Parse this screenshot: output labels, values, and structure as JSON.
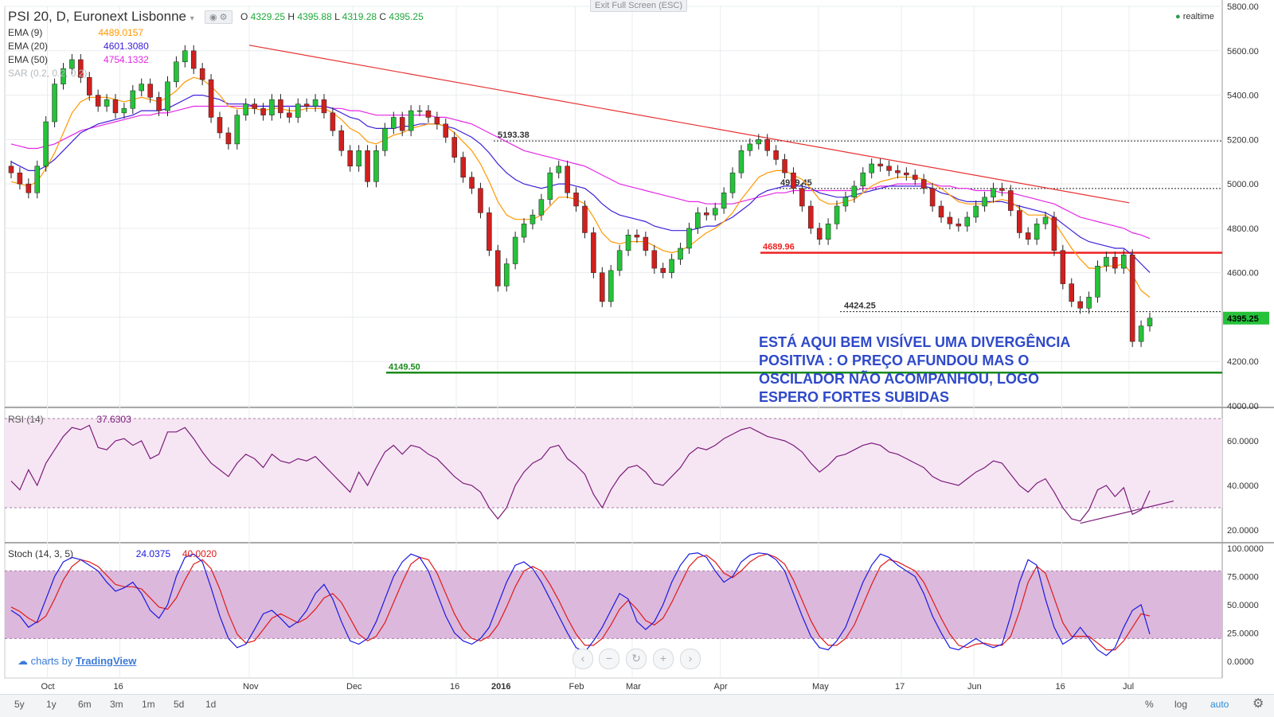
{
  "header": {
    "title": "PSI 20, D, Euronext Lisbonne",
    "ohlc": [
      {
        "k": "O",
        "v": "4329.25"
      },
      {
        "k": "H",
        "v": "4395.88"
      },
      {
        "k": "L",
        "v": "4319.28"
      },
      {
        "k": "C",
        "v": "4395.25"
      }
    ],
    "exit_fullscreen": "Exit Full Screen (ESC)",
    "realtime": "realtime"
  },
  "indicators": [
    {
      "name": "EMA (9)",
      "value": "4489.0157",
      "color": "#ff9800"
    },
    {
      "name": "EMA (20)",
      "value": "4601.3080",
      "color": "#3b20d6"
    },
    {
      "name": "EMA (50)",
      "value": "4754.1332",
      "color": "#e526e5"
    },
    {
      "name": "SAR (0.2, 0.2, 0.2)",
      "value": "",
      "color": "#999999"
    }
  ],
  "colors": {
    "up": "#26c23a",
    "down": "#d0201e",
    "grid": "#e9ecef",
    "trend": "#e83030",
    "support": "#1a8c1a",
    "resistance": "#ee2222",
    "rsi": "#7b1b7b",
    "rsi_band": "#f6e6f3",
    "stoch_band": "#dcb8dc",
    "stoch_k": "#1a1ae0",
    "stoch_d": "#e01a1a",
    "annotation": "#2f49c9"
  },
  "chart_data": [
    {
      "type": "candlestick",
      "title": "PSI 20, D, Euronext Lisbonne",
      "y_ticks": [
        "5800.00",
        "5600.00",
        "5400.00",
        "5200.00",
        "5000.00",
        "4800.00",
        "4600.00",
        "4400.00",
        "4200.00",
        "4000.00"
      ],
      "ylim": [
        4000,
        5800
      ],
      "x_ticks": [
        "Oct",
        "16",
        "Nov",
        "Dec",
        "16",
        "2016",
        "Feb",
        "Mar",
        "Apr",
        "May",
        "17",
        "Jun",
        "16",
        "Jul"
      ],
      "last_price": "4395.25",
      "levels": [
        {
          "label": "5193.38",
          "value": 5193.38,
          "style": "dotted"
        },
        {
          "label": "4979.45",
          "value": 4979.45,
          "style": "dotted"
        },
        {
          "label": "4689.96",
          "value": 4689.96,
          "style": "solid-red"
        },
        {
          "label": "4424.25",
          "value": 4424.25,
          "style": "dotted"
        },
        {
          "label": "4149.50",
          "value": 4149.5,
          "style": "solid-green"
        }
      ],
      "trendline": {
        "from": [
          "Nov",
          5625
        ],
        "to": [
          "Jul",
          4915
        ]
      },
      "annotation": [
        "ESTÁ AQUI BEM VISÍVEL UMA DIVERGÊNCIA",
        "POSITIVA : O PREÇO AFUNDOU MAS O",
        "OSCILADOR NÃO ACOMPANHOU, LOGO",
        "ESPERO FORTES SUBIDAS"
      ],
      "closes": [
        5050,
        5000,
        4960,
        5080,
        5280,
        5450,
        5520,
        5560,
        5480,
        5400,
        5350,
        5380,
        5320,
        5340,
        5420,
        5450,
        5390,
        5330,
        5460,
        5550,
        5600,
        5520,
        5470,
        5300,
        5230,
        5180,
        5310,
        5360,
        5340,
        5310,
        5380,
        5320,
        5300,
        5360,
        5350,
        5380,
        5320,
        5240,
        5150,
        5080,
        5150,
        5010,
        5150,
        5250,
        5300,
        5240,
        5330,
        5330,
        5300,
        5270,
        5210,
        5120,
        5030,
        4980,
        4870,
        4700,
        4540,
        4640,
        4760,
        4820,
        4860,
        4930,
        5050,
        5080,
        4960,
        4900,
        4780,
        4600,
        4470,
        4610,
        4700,
        4770,
        4760,
        4700,
        4620,
        4600,
        4660,
        4710,
        4800,
        4870,
        4860,
        4890,
        4960,
        5050,
        5150,
        5180,
        5200,
        5150,
        5110,
        5050,
        4980,
        4900,
        4800,
        4750,
        4820,
        4900,
        4940,
        4990,
        5050,
        5090,
        5080,
        5060,
        5050,
        5040,
        5020,
        4980,
        4900,
        4850,
        4820,
        4810,
        4850,
        4900,
        4940,
        4980,
        4970,
        4880,
        4780,
        4750,
        4820,
        4850,
        4700,
        4550,
        4470,
        4440,
        4490,
        4630,
        4670,
        4620,
        4680,
        4290,
        4360,
        4395
      ],
      "ema9": [
        5010,
        5000,
        4990,
        5010,
        5070,
        5140,
        5230,
        5320,
        5370,
        5390,
        5390,
        5390,
        5380,
        5370,
        5380,
        5390,
        5380,
        5370,
        5390,
        5420,
        5460,
        5480,
        5470,
        5440,
        5400,
        5350,
        5340,
        5340,
        5340,
        5330,
        5340,
        5340,
        5330,
        5330,
        5340,
        5340,
        5340,
        5320,
        5290,
        5250,
        5230,
        5190,
        5180,
        5200,
        5220,
        5230,
        5250,
        5260,
        5270,
        5270,
        5260,
        5230,
        5190,
        5150,
        5090,
        5010,
        4920,
        4860,
        4840,
        4840,
        4840,
        4860,
        4900,
        4940,
        4940,
        4930,
        4910,
        4850,
        4780,
        4740,
        4730,
        4740,
        4740,
        4740,
        4720,
        4700,
        4690,
        4700,
        4720,
        4750,
        4780,
        4800,
        4830,
        4870,
        4930,
        4980,
        5030,
        5050,
        5060,
        5060,
        5040,
        5020,
        4980,
        4930,
        4910,
        4910,
        4920,
        4930,
        4960,
        4990,
        5010,
        5020,
        5030,
        5030,
        5030,
        5020,
        5000,
        4980,
        4950,
        4920,
        4910,
        4910,
        4910,
        4920,
        4930,
        4920,
        4890,
        4860,
        4860,
        4860,
        4830,
        4770,
        4710,
        4660,
        4620,
        4620,
        4630,
        4630,
        4640,
        4590,
        4520,
        4489
      ],
      "ema20": [
        5100,
        5080,
        5060,
        5060,
        5080,
        5110,
        5150,
        5190,
        5230,
        5250,
        5270,
        5280,
        5290,
        5300,
        5310,
        5330,
        5330,
        5330,
        5340,
        5360,
        5380,
        5400,
        5400,
        5390,
        5380,
        5360,
        5360,
        5360,
        5350,
        5350,
        5350,
        5350,
        5350,
        5350,
        5350,
        5350,
        5350,
        5340,
        5320,
        5300,
        5290,
        5260,
        5250,
        5250,
        5250,
        5260,
        5260,
        5270,
        5270,
        5270,
        5260,
        5250,
        5230,
        5210,
        5180,
        5140,
        5090,
        5050,
        5020,
        5000,
        4990,
        4980,
        4990,
        5000,
        5000,
        4990,
        4980,
        4950,
        4910,
        4880,
        4860,
        4850,
        4840,
        4830,
        4810,
        4800,
        4790,
        4790,
        4790,
        4800,
        4810,
        4810,
        4830,
        4850,
        4880,
        4910,
        4950,
        4970,
        4980,
        4990,
        4990,
        4990,
        4980,
        4960,
        4950,
        4940,
        4940,
        4950,
        4960,
        4970,
        4980,
        4990,
        4990,
        4990,
        4990,
        4990,
        4980,
        4960,
        4950,
        4930,
        4920,
        4920,
        4920,
        4920,
        4920,
        4910,
        4900,
        4890,
        4880,
        4870,
        4850,
        4820,
        4790,
        4760,
        4740,
        4730,
        4720,
        4710,
        4710,
        4680,
        4640,
        4601
      ],
      "ema50": [
        5180,
        5170,
        5160,
        5160,
        5170,
        5180,
        5200,
        5220,
        5240,
        5250,
        5260,
        5270,
        5280,
        5290,
        5300,
        5310,
        5310,
        5320,
        5320,
        5330,
        5340,
        5350,
        5350,
        5350,
        5350,
        5350,
        5350,
        5350,
        5350,
        5350,
        5350,
        5350,
        5350,
        5350,
        5350,
        5350,
        5350,
        5340,
        5340,
        5330,
        5330,
        5320,
        5310,
        5310,
        5310,
        5310,
        5310,
        5310,
        5310,
        5300,
        5300,
        5290,
        5280,
        5270,
        5250,
        5230,
        5210,
        5190,
        5170,
        5150,
        5140,
        5130,
        5120,
        5110,
        5100,
        5090,
        5080,
        5060,
        5040,
        5020,
        5000,
        4990,
        4980,
        4970,
        4960,
        4950,
        4940,
        4930,
        4920,
        4920,
        4910,
        4910,
        4910,
        4910,
        4920,
        4930,
        4940,
        4950,
        4960,
        4960,
        4970,
        4970,
        4970,
        4970,
        4970,
        4970,
        4970,
        4970,
        4980,
        4980,
        4990,
        4990,
        5000,
        5000,
        5000,
        5000,
        5000,
        4990,
        4990,
        4980,
        4980,
        4970,
        4970,
        4970,
        4960,
        4960,
        4950,
        4940,
        4930,
        4920,
        4910,
        4890,
        4870,
        4850,
        4840,
        4830,
        4820,
        4810,
        4800,
        4780,
        4770,
        4754
      ]
    },
    {
      "type": "line",
      "title": "RSI (14)",
      "value_label": "37.6303",
      "y_ticks": [
        "60.0000",
        "40.0000",
        "20.0000"
      ],
      "ylim": [
        15,
        75
      ],
      "bands": [
        30,
        70
      ],
      "values": [
        42,
        38,
        47,
        40,
        50,
        56,
        62,
        66,
        65,
        67,
        57,
        56,
        60,
        61,
        58,
        60,
        52,
        54,
        64,
        64,
        66,
        61,
        55,
        50,
        47,
        44,
        50,
        54,
        52,
        48,
        54,
        51,
        50,
        52,
        51,
        53,
        49,
        45,
        41,
        37,
        46,
        40,
        48,
        55,
        58,
        54,
        58,
        57,
        54,
        52,
        48,
        44,
        41,
        40,
        37,
        30,
        25,
        30,
        40,
        46,
        50,
        52,
        57,
        58,
        52,
        49,
        45,
        36,
        30,
        38,
        44,
        48,
        49,
        46,
        41,
        40,
        44,
        48,
        54,
        57,
        56,
        58,
        61,
        63,
        65,
        66,
        64,
        62,
        61,
        60,
        58,
        55,
        50,
        46,
        49,
        53,
        54,
        56,
        58,
        59,
        58,
        55,
        54,
        52,
        50,
        48,
        44,
        42,
        41,
        40,
        43,
        46,
        48,
        51,
        50,
        45,
        40,
        37,
        41,
        43,
        37,
        30,
        25,
        24,
        29,
        38,
        40,
        35,
        39,
        27,
        29,
        37.63
      ],
      "divergence_line": {
        "from": [
          123,
          23
        ],
        "to": [
          131,
          33
        ]
      }
    },
    {
      "type": "line",
      "title": "Stoch (14, 3, 5)",
      "k_label": "24.0375",
      "d_label": "40.0020",
      "y_ticks": [
        "100.0000",
        "75.0000",
        "50.0000",
        "25.0000",
        "0.0000"
      ],
      "ylim": [
        -15,
        105
      ],
      "bands": [
        20,
        80
      ],
      "k": [
        45,
        40,
        30,
        35,
        55,
        75,
        88,
        92,
        90,
        85,
        80,
        70,
        62,
        65,
        70,
        60,
        45,
        38,
        50,
        75,
        92,
        95,
        88,
        65,
        40,
        20,
        12,
        15,
        28,
        42,
        45,
        38,
        30,
        35,
        45,
        60,
        68,
        55,
        35,
        18,
        15,
        20,
        35,
        55,
        75,
        88,
        95,
        92,
        80,
        60,
        40,
        25,
        18,
        15,
        20,
        30,
        50,
        70,
        85,
        88,
        82,
        70,
        55,
        40,
        25,
        12,
        8,
        18,
        30,
        45,
        60,
        55,
        35,
        28,
        35,
        50,
        70,
        85,
        95,
        96,
        92,
        80,
        70,
        75,
        88,
        94,
        96,
        95,
        90,
        80,
        60,
        40,
        22,
        12,
        10,
        18,
        30,
        50,
        70,
        85,
        95,
        92,
        85,
        80,
        75,
        60,
        40,
        25,
        12,
        10,
        15,
        20,
        15,
        12,
        15,
        40,
        70,
        90,
        85,
        55,
        30,
        15,
        20,
        30,
        20,
        10,
        5,
        12,
        30,
        45,
        50,
        24
      ],
      "d": [
        48,
        44,
        38,
        34,
        40,
        55,
        72,
        84,
        90,
        88,
        84,
        76,
        68,
        66,
        66,
        64,
        56,
        48,
        46,
        56,
        72,
        86,
        90,
        82,
        64,
        42,
        24,
        16,
        18,
        28,
        38,
        42,
        38,
        34,
        38,
        46,
        56,
        60,
        52,
        38,
        24,
        18,
        22,
        34,
        52,
        70,
        86,
        92,
        90,
        78,
        60,
        42,
        28,
        20,
        18,
        22,
        32,
        48,
        66,
        80,
        84,
        80,
        68,
        54,
        38,
        24,
        14,
        14,
        20,
        32,
        46,
        54,
        46,
        36,
        32,
        38,
        52,
        68,
        84,
        92,
        94,
        88,
        78,
        74,
        80,
        88,
        93,
        95,
        92,
        86,
        72,
        54,
        36,
        22,
        14,
        14,
        20,
        32,
        50,
        68,
        84,
        90,
        88,
        84,
        80,
        70,
        54,
        38,
        24,
        14,
        12,
        15,
        16,
        14,
        14,
        22,
        44,
        70,
        84,
        78,
        56,
        34,
        22,
        22,
        22,
        16,
        10,
        10,
        18,
        30,
        42,
        40
      ]
    }
  ],
  "branding": {
    "prefix": "charts by",
    "brand": "TradingView"
  },
  "timeframes": [
    "5y",
    "1y",
    "6m",
    "3m",
    "1m",
    "5d",
    "1d"
  ],
  "footer": {
    "percent": "%",
    "log": "log",
    "auto": "auto"
  }
}
